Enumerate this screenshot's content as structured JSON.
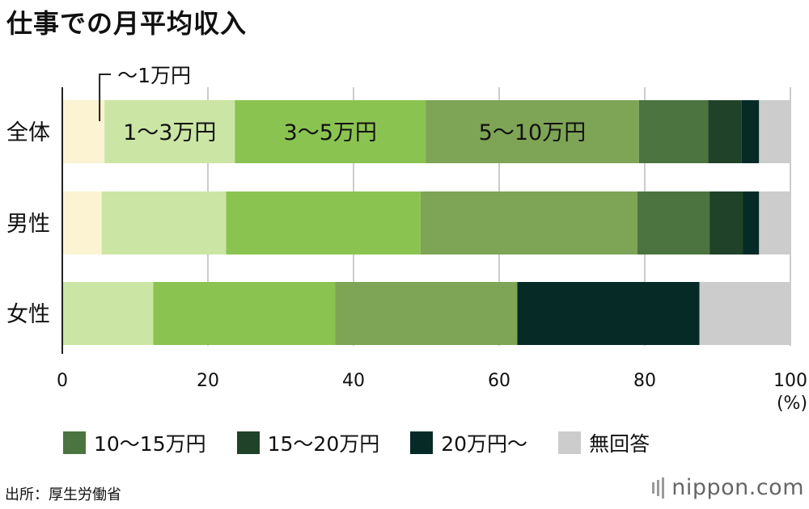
{
  "title": "仕事での月平均収入",
  "source": "出所：厚生労働省",
  "brand": {
    "name": "nippon",
    "domain": ".com"
  },
  "colors": {
    "lt1": "#fbf3d2",
    "r1_3": "#cbe6a4",
    "r3_5": "#8bc351",
    "r5_10": "#7ea455",
    "r10_15": "#4b7440",
    "r15_20": "#1f4228",
    "r20plus": "#062b26",
    "noanswer": "#cccccc",
    "grid": "#cccccc",
    "axis": "#222222"
  },
  "chart_data": {
    "type": "bar",
    "orientation": "horizontal",
    "stacked": true,
    "categories": [
      "全体",
      "男性",
      "女性"
    ],
    "x_unit": "(%)",
    "xlim": [
      0,
      100
    ],
    "x_ticks": [
      0,
      20,
      40,
      60,
      80,
      100
    ],
    "grid": true,
    "series": [
      {
        "name": "～1万円",
        "color": "#fbf3d2",
        "values": [
          5.8,
          5.4,
          0
        ]
      },
      {
        "name": "1～3万円",
        "color": "#cbe6a4",
        "values": [
          17.9,
          17.1,
          12.5
        ]
      },
      {
        "name": "3～5万円",
        "color": "#8bc351",
        "values": [
          26.2,
          26.7,
          25.0
        ]
      },
      {
        "name": "5～10万円",
        "color": "#7ea455",
        "values": [
          29.3,
          29.8,
          25.0
        ]
      },
      {
        "name": "10～15万円",
        "color": "#4b7440",
        "values": [
          9.5,
          9.9,
          0
        ]
      },
      {
        "name": "15～20万円",
        "color": "#1f4228",
        "values": [
          4.6,
          4.6,
          0
        ]
      },
      {
        "name": "20万円～",
        "color": "#062b26",
        "values": [
          2.4,
          2.2,
          25.0
        ]
      },
      {
        "name": "無回答",
        "color": "#cccccc",
        "values": [
          4.3,
          4.3,
          12.5
        ]
      }
    ],
    "inline_labels": [
      {
        "series": 0,
        "text": "～1万円",
        "callout": true
      },
      {
        "series": 1,
        "text": "1～3万円"
      },
      {
        "series": 2,
        "text": "3～5万円"
      },
      {
        "series": 3,
        "text": "5～10万円"
      }
    ],
    "legend": {
      "placement": "bottom",
      "series": [
        4,
        5,
        6,
        7
      ]
    }
  }
}
